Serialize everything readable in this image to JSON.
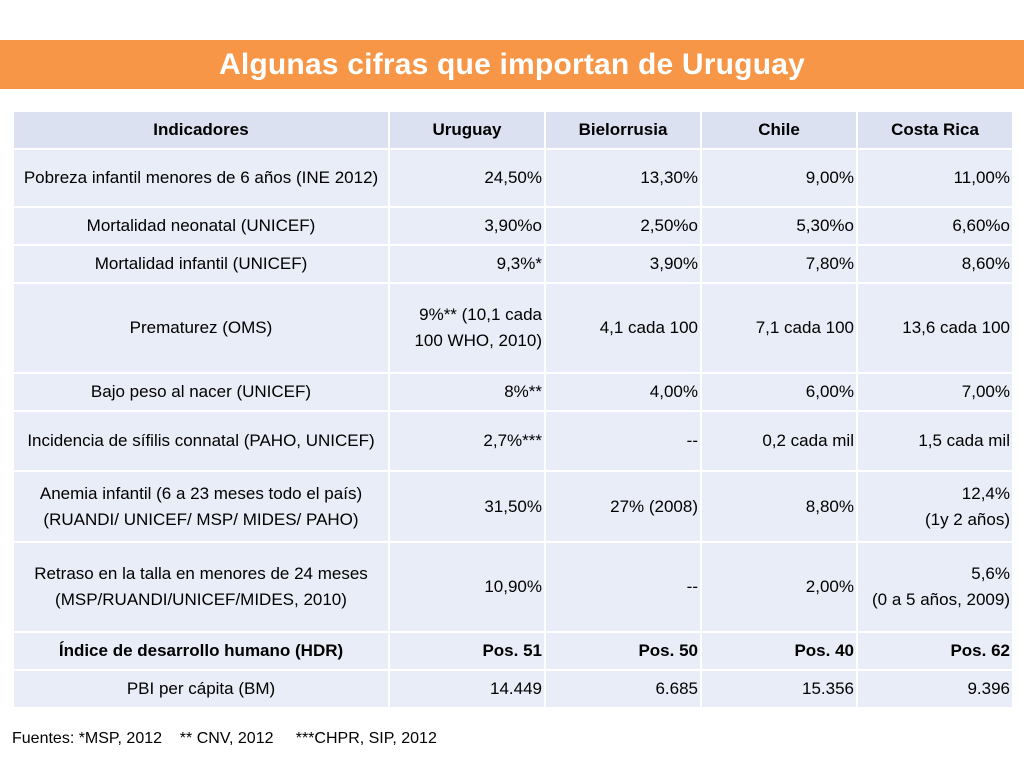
{
  "title": "Algunas cifras que importan de Uruguay",
  "colors": {
    "title_bar": "#f79646",
    "title_text": "#ffffff",
    "header_fill": "#dbe1f1",
    "row_fill": "#e9edf7"
  },
  "table": {
    "headers": [
      "Indicadores",
      "Uruguay",
      "Bielorrusia",
      "Chile",
      "Costa Rica"
    ],
    "rows": [
      {
        "indicator": "Pobreza infantil menores de 6 años (INE 2012)",
        "uruguay": "24,50%",
        "bielorrusia": "13,30%",
        "chile": "9,00%",
        "costa_rica": "11,00%"
      },
      {
        "indicator": "Mortalidad neonatal (UNICEF)",
        "uruguay": "3,90%o",
        "bielorrusia": "2,50%o",
        "chile": "5,30%o",
        "costa_rica": "6,60%o"
      },
      {
        "indicator": "Mortalidad  infantil (UNICEF)",
        "uruguay": "9,3%*",
        "bielorrusia": "3,90%",
        "chile": "7,80%",
        "costa_rica": "8,60%"
      },
      {
        "indicator": "Prematurez (OMS)",
        "uruguay": "9%** (10,1 cada 100 WHO, 2010)",
        "bielorrusia": "4,1 cada 100",
        "chile": "7,1 cada 100",
        "costa_rica": "13,6 cada 100"
      },
      {
        "indicator": "Bajo peso al nacer (UNICEF)",
        "uruguay": "8%**",
        "bielorrusia": "4,00%",
        "chile": "6,00%",
        "costa_rica": "7,00%"
      },
      {
        "indicator": "Incidencia de sífilis connatal (PAHO, UNICEF)",
        "uruguay": "2,7%***",
        "bielorrusia": "--",
        "chile": "0,2 cada mil",
        "costa_rica": "1,5 cada mil"
      },
      {
        "indicator": "Anemia infantil (6 a 23 meses todo el país) (RUANDI/ UNICEF/ MSP/ MIDES/ PAHO)",
        "uruguay": "31,50%",
        "bielorrusia": "27% (2008)",
        "chile": "8,80%",
        "costa_rica": "12,4%\n(1y 2 años)"
      },
      {
        "indicator": "Retraso en la talla en menores de 24 meses (MSP/RUANDI/UNICEF/MIDES, 2010)",
        "uruguay": "10,90%",
        "bielorrusia": "--",
        "chile": "2,00%",
        "costa_rica": "5,6%\n(0 a 5 años, 2009)"
      },
      {
        "indicator": "Índice de desarrollo humano (HDR)",
        "uruguay": "Pos. 51",
        "bielorrusia": "Pos. 50",
        "chile": "Pos. 40",
        "costa_rica": "Pos. 62"
      },
      {
        "indicator": "PBI per cápita (BM)",
        "uruguay": "14.449",
        "bielorrusia": "6.685",
        "chile": "15.356",
        "costa_rica": "9.396"
      }
    ]
  },
  "footer": "Fuentes: *MSP, 2012    ** CNV, 2012     ***CHPR, SIP, 2012"
}
